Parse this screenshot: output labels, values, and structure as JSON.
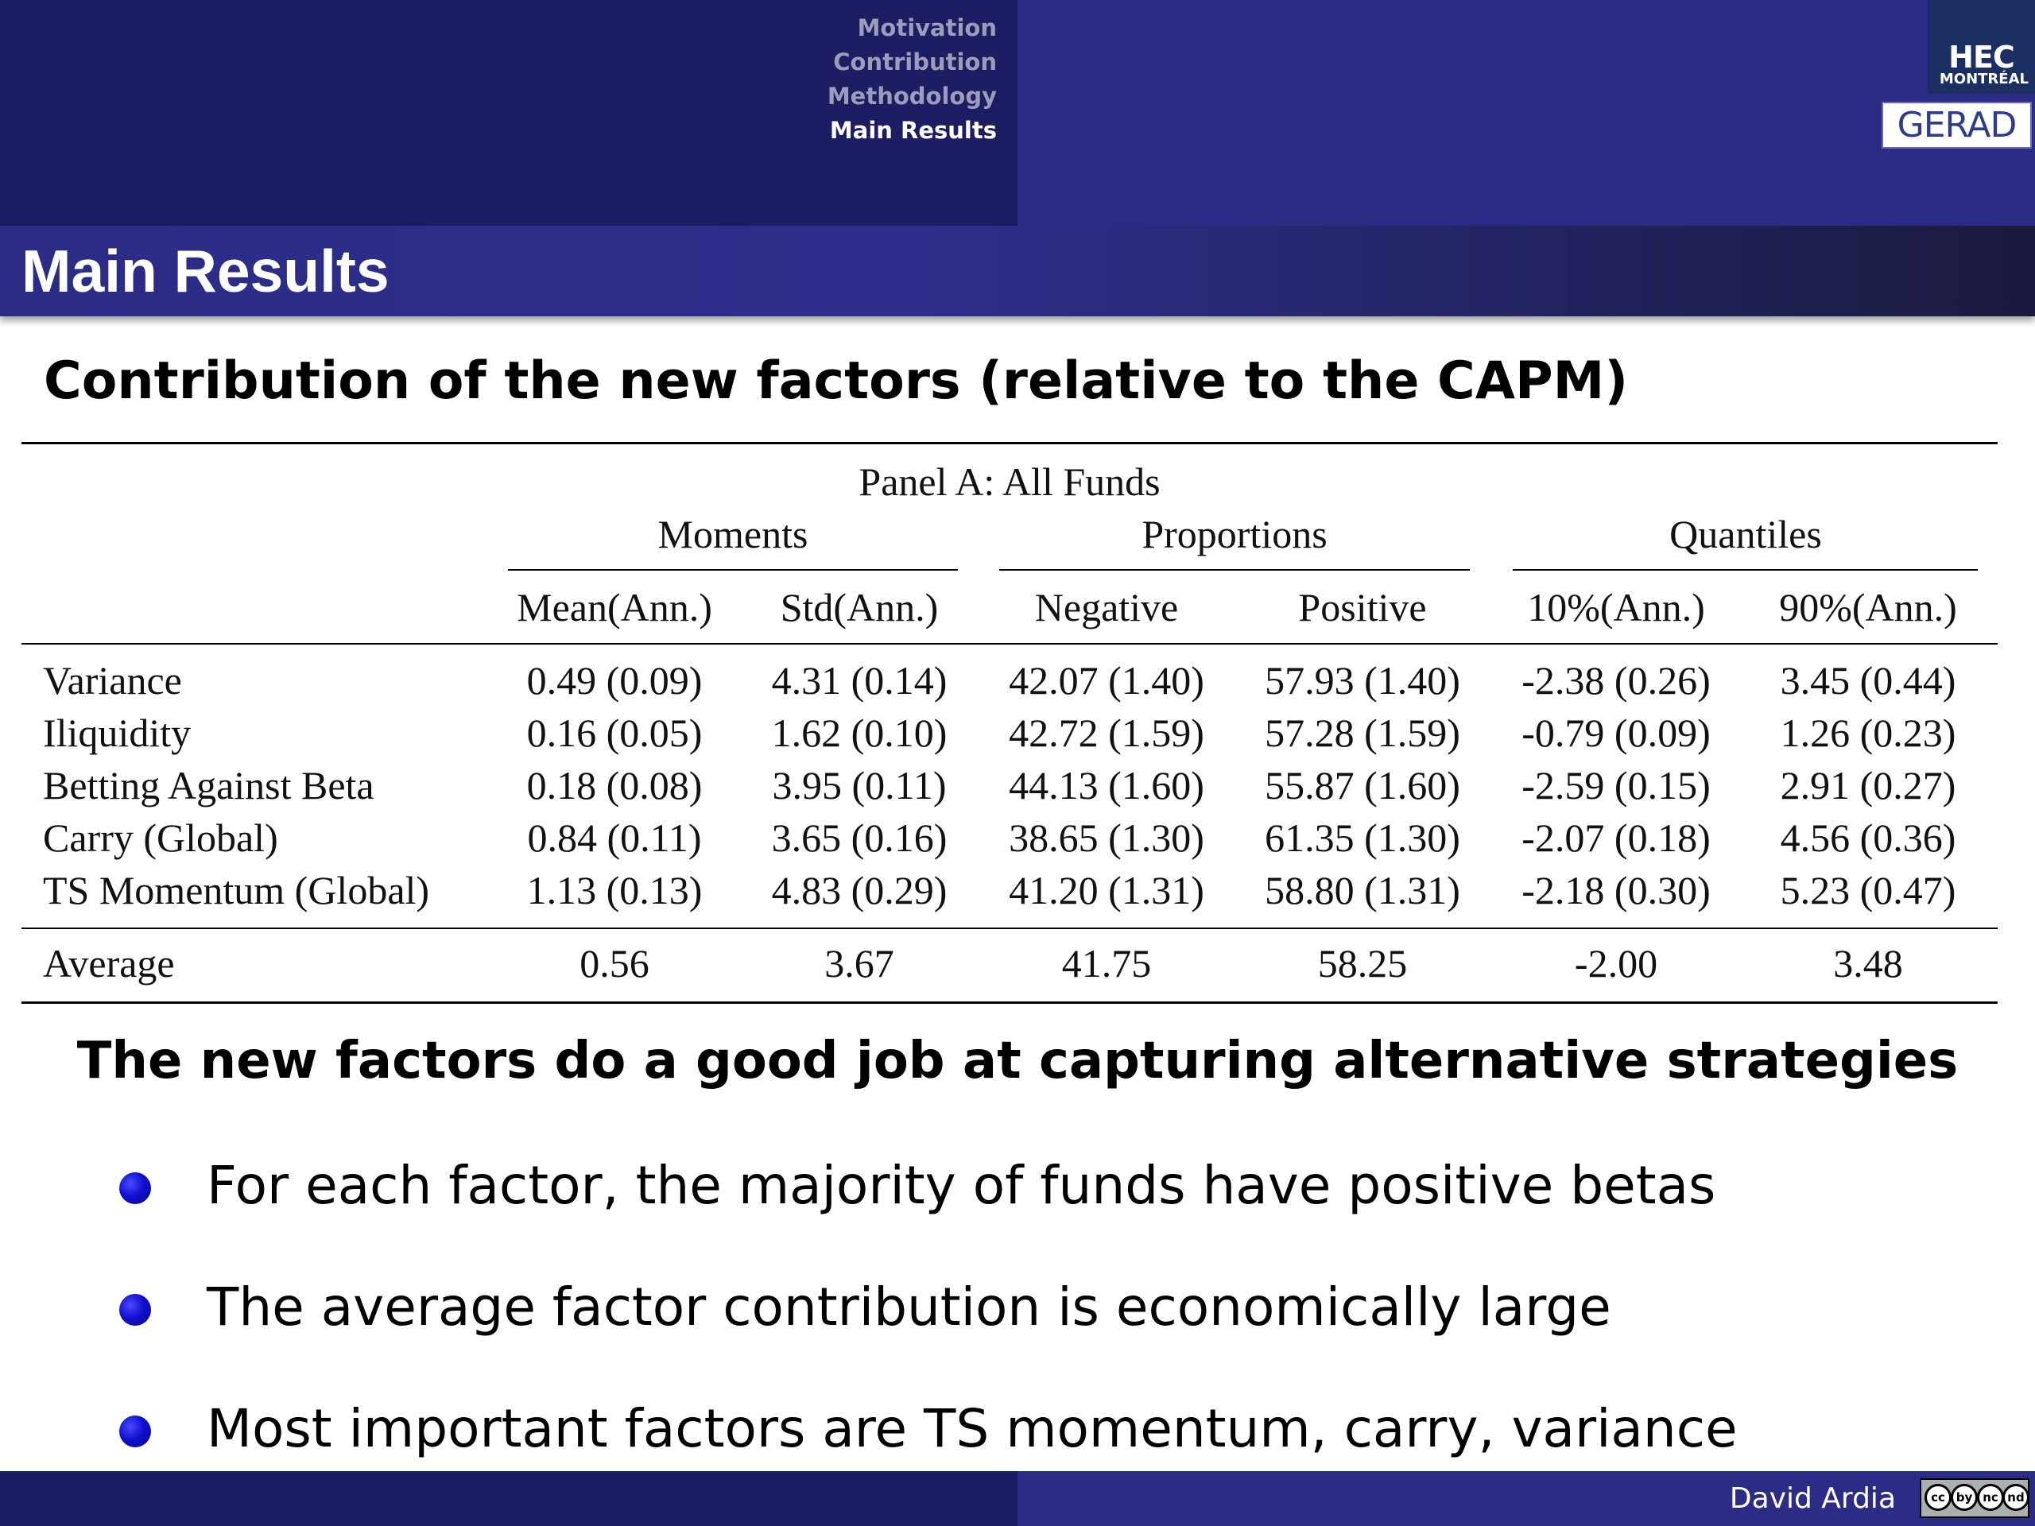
{
  "header": {
    "nav": [
      "Motivation",
      "Contribution",
      "Methodology",
      "Main  Results"
    ],
    "active_nav_index": 3,
    "logos": {
      "hec_main": "HEC",
      "hec_sub": "MONTRÉAL",
      "gerad": "GERAD"
    }
  },
  "frame_title": "Main Results",
  "section_title": "Contribution of the new factors (relative to the CAPM)",
  "table": {
    "panel": "Panel A: All Funds",
    "groups": [
      "Moments",
      "Proportions",
      "Quantiles"
    ],
    "columns": [
      "Mean(Ann.)",
      "Std(Ann.)",
      "Negative",
      "Positive",
      "10%(Ann.)",
      "90%(Ann.)"
    ],
    "rows": [
      {
        "label": "Variance",
        "cells": [
          "0.49 (0.09)",
          "4.31 (0.14)",
          "42.07 (1.40)",
          "57.93 (1.40)",
          "-2.38 (0.26)",
          "3.45 (0.44)"
        ]
      },
      {
        "label": "Iliquidity",
        "cells": [
          "0.16 (0.05)",
          "1.62 (0.10)",
          "42.72 (1.59)",
          "57.28 (1.59)",
          "-0.79 (0.09)",
          "1.26 (0.23)"
        ]
      },
      {
        "label": "Betting Against Beta",
        "cells": [
          "0.18 (0.08)",
          "3.95 (0.11)",
          "44.13 (1.60)",
          "55.87 (1.60)",
          "-2.59 (0.15)",
          "2.91 (0.27)"
        ]
      },
      {
        "label": "Carry (Global)",
        "cells": [
          "0.84 (0.11)",
          "3.65 (0.16)",
          "38.65 (1.30)",
          "61.35 (1.30)",
          "-2.07 (0.18)",
          "4.56 (0.36)"
        ]
      },
      {
        "label": "TS Momentum (Global)",
        "cells": [
          "1.13 (0.13)",
          "4.83 (0.29)",
          "41.20 (1.31)",
          "58.80 (1.31)",
          "-2.18 (0.30)",
          "5.23 (0.47)"
        ]
      }
    ],
    "average": {
      "label": "Average",
      "cells": [
        "0.56",
        "3.67",
        "41.75",
        "58.25",
        "-2.00",
        "3.48"
      ]
    }
  },
  "conclusion": "The new factors do a good job at capturing alternative strategies",
  "bullets": [
    "For each factor, the majority of funds have positive betas",
    "The average factor contribution is economically large",
    "Most important factors are TS momentum, carry, variance"
  ],
  "footer": {
    "author": "David Ardia",
    "license_badge": [
      "cc",
      "by",
      "nc",
      "nd"
    ]
  },
  "colors": {
    "banner_dark": "#1c1d63",
    "banner_light": "#2b2c86",
    "bullet": "#1010d0",
    "nav_inactive": "#9d9dbb"
  }
}
